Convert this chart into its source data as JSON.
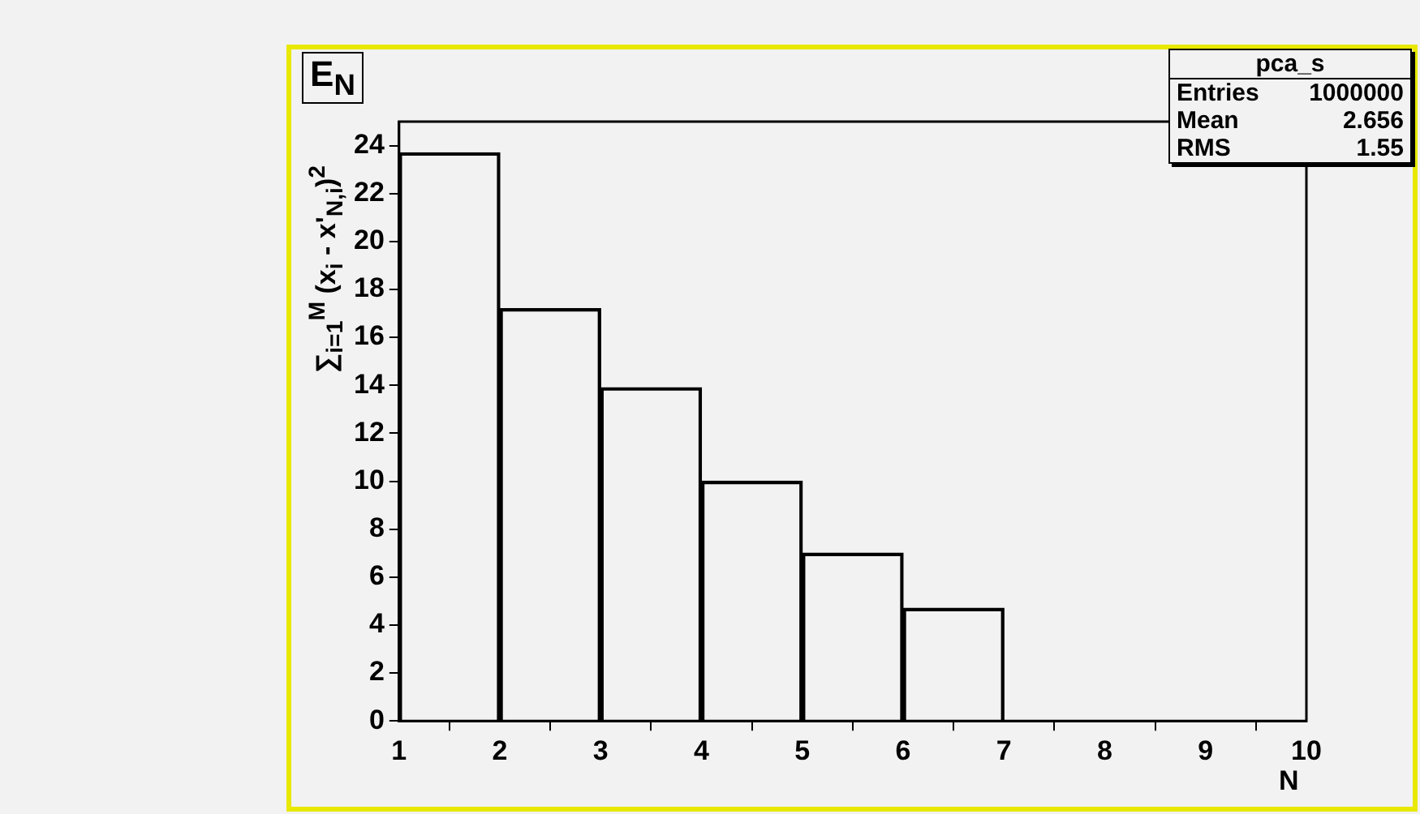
{
  "chart_data": {
    "type": "histogram",
    "title": "E$_{N}$",
    "xlabel": "N",
    "ylabel": "∑$_{i=1}$$^{M}$ (x$_{i}$ - x'$_{N,i}$)$^{2}$",
    "bins": [
      1,
      2,
      3,
      4,
      5,
      6,
      7,
      8,
      9,
      10
    ],
    "values": [
      23.7,
      17.2,
      13.9,
      10.0,
      7.0,
      4.7,
      0,
      0,
      0
    ],
    "color": "#000000",
    "xlim": [
      1,
      10
    ],
    "xticks": [
      1,
      2,
      3,
      4,
      5,
      6,
      7,
      8,
      9,
      10
    ],
    "ylim": [
      0,
      25
    ],
    "yticks": [
      0,
      2,
      4,
      6,
      8,
      10,
      12,
      14,
      16,
      18,
      20,
      22,
      24
    ],
    "annotations": [
      "pca_s",
      "Entries 1000000",
      "Mean 2.656",
      "RMS 1.55"
    ]
  }
}
